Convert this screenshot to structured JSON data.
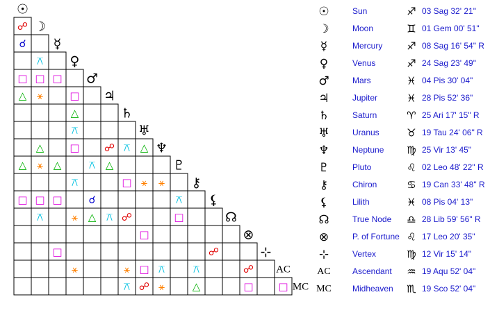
{
  "bodies": [
    {
      "glyph": "☉",
      "name": "Sun",
      "sign": "♐",
      "position": "03 Sag 32' 21\""
    },
    {
      "glyph": "☽",
      "name": "Moon",
      "sign": "♊",
      "position": "01 Gem 00' 51\""
    },
    {
      "glyph": "☿",
      "name": "Mercury",
      "sign": "♐",
      "position": "08 Sag 16' 54\" R"
    },
    {
      "glyph": "♀",
      "name": "Venus",
      "sign": "♐",
      "position": "24 Sag 23' 49\""
    },
    {
      "glyph": "♂",
      "name": "Mars",
      "sign": "♓",
      "position": "04 Pis 30' 04\""
    },
    {
      "glyph": "♃",
      "name": "Jupiter",
      "sign": "♓",
      "position": "28 Pis 52' 36\""
    },
    {
      "glyph": "♄",
      "name": "Saturn",
      "sign": "♈",
      "position": "25 Ari 17' 15\" R"
    },
    {
      "glyph": "♅",
      "name": "Uranus",
      "sign": "♉",
      "position": "19 Tau 24' 06\" R"
    },
    {
      "glyph": "♆",
      "name": "Neptune",
      "sign": "♍",
      "position": "25 Vir 13' 45\""
    },
    {
      "glyph": "♇",
      "name": "Pluto",
      "sign": "♌",
      "position": "02 Leo 48' 22\" R"
    },
    {
      "glyph": "⚷",
      "name": "Chiron",
      "sign": "♋",
      "position": "19 Can 33' 48\" R"
    },
    {
      "glyph": "⚸",
      "name": "Lilith",
      "sign": "♓",
      "position": "08 Pis 04' 13\""
    },
    {
      "glyph": "☊",
      "name": "True Node",
      "sign": "♎",
      "position": "28 Lib 59' 56\" R"
    },
    {
      "glyph": "⊗",
      "name": "P. of Fortune",
      "sign": "♌",
      "position": "17 Leo 20' 35\""
    },
    {
      "glyph": "⊹",
      "name": "Vertex",
      "sign": "♍",
      "position": "12 Vir 15' 14\""
    },
    {
      "glyph": "AC",
      "name": "Ascendant",
      "sign": "♒",
      "position": "19 Aqu 52' 04\""
    },
    {
      "glyph": "MC",
      "name": "Midheaven",
      "sign": "♏",
      "position": "19 Sco 52' 04\""
    }
  ],
  "aspects": [
    [
      "☍"
    ],
    [
      "☌",
      null
    ],
    [
      null,
      "⚻",
      null
    ],
    [
      "□",
      "□",
      "□",
      null
    ],
    [
      "△",
      "⚹",
      null,
      "□",
      null
    ],
    [
      null,
      null,
      null,
      "△",
      null,
      null
    ],
    [
      null,
      null,
      null,
      "⚻",
      null,
      null,
      null
    ],
    [
      null,
      "△",
      null,
      "□",
      null,
      "☍",
      "⚻",
      "△"
    ],
    [
      "△",
      "⚹",
      "△",
      null,
      "⚻",
      "△",
      null,
      null,
      null
    ],
    [
      null,
      null,
      null,
      "⚻",
      null,
      null,
      "□",
      "⚹",
      "⚹",
      null
    ],
    [
      "□",
      "□",
      "□",
      null,
      "☌",
      null,
      null,
      null,
      null,
      "⚻",
      null
    ],
    [
      null,
      "⚻",
      null,
      "⚹",
      "△",
      "⚻",
      "☍",
      null,
      null,
      "□",
      null,
      null
    ],
    [
      null,
      null,
      null,
      null,
      null,
      null,
      null,
      "□",
      null,
      null,
      null,
      null,
      null
    ],
    [
      null,
      null,
      "□",
      null,
      null,
      null,
      null,
      null,
      null,
      null,
      null,
      "☍",
      null,
      null
    ],
    [
      null,
      null,
      null,
      "⚹",
      null,
      null,
      "⚹",
      "□",
      "⚻",
      null,
      "⚻",
      null,
      null,
      "☍",
      null
    ],
    [
      null,
      null,
      null,
      null,
      null,
      null,
      "⚻",
      "☍",
      "⚹",
      null,
      "△",
      null,
      null,
      "□",
      null,
      "□"
    ]
  ]
}
